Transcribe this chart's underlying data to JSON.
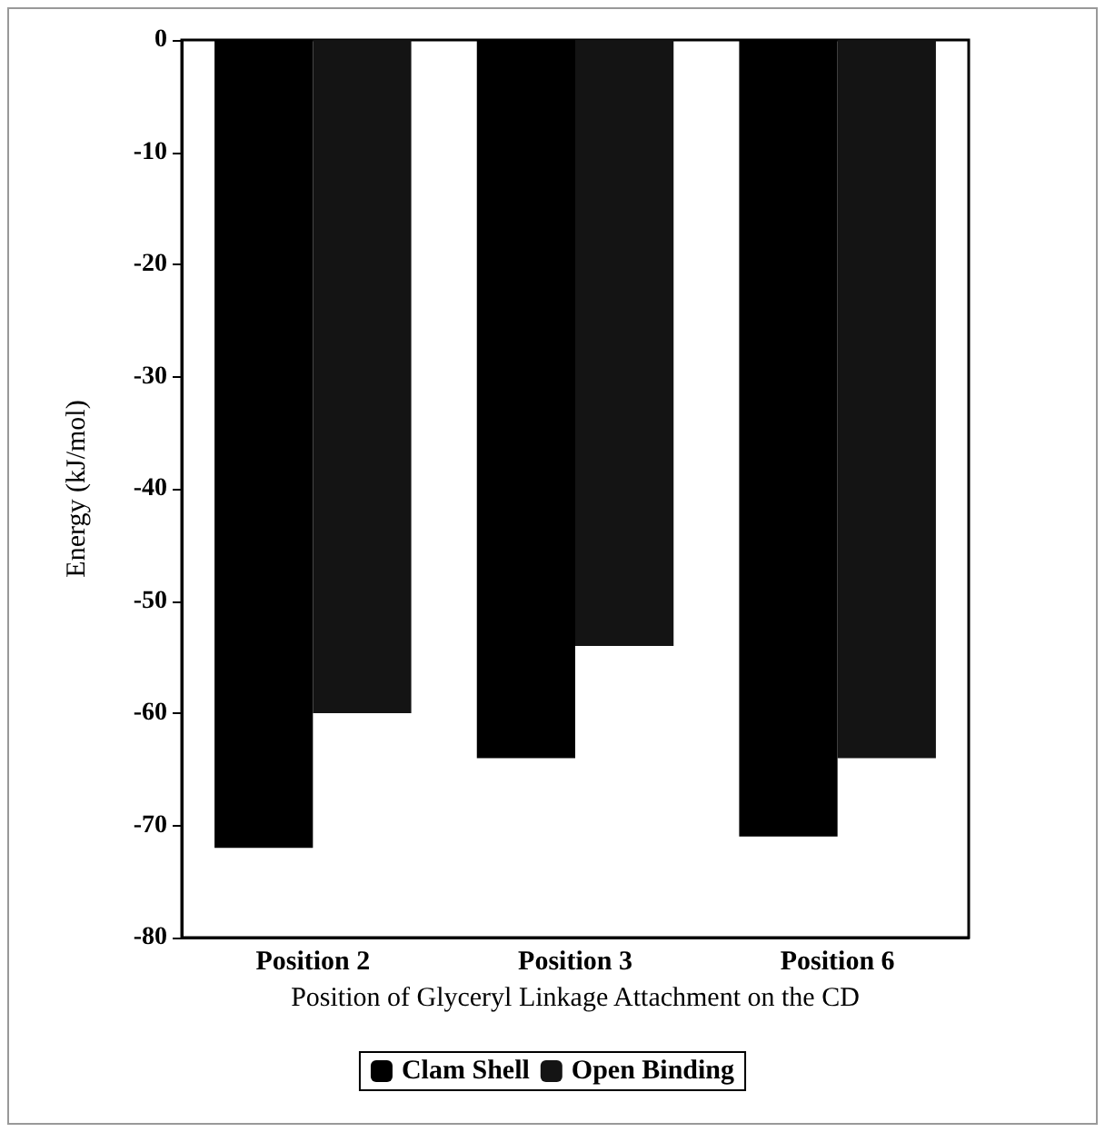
{
  "chart_data": {
    "type": "bar",
    "xlabel": "Position of Glyceryl Linkage Attachment on the CD",
    "ylabel": "Energy (kJ/mol)",
    "categories": [
      "Position 2",
      "Position 3",
      "Position 6"
    ],
    "series": [
      {
        "name": "Clam Shell",
        "color": "#000000",
        "values": [
          -72,
          -64,
          -71
        ]
      },
      {
        "name": "Open Binding",
        "color": "#141414",
        "values": [
          -60,
          -54,
          -64
        ]
      }
    ],
    "ylim": [
      -80,
      0
    ],
    "yticks": [
      0,
      -10,
      -20,
      -30,
      -40,
      -50,
      -60,
      -70,
      -80
    ],
    "grid": false,
    "legend": "bottom"
  }
}
